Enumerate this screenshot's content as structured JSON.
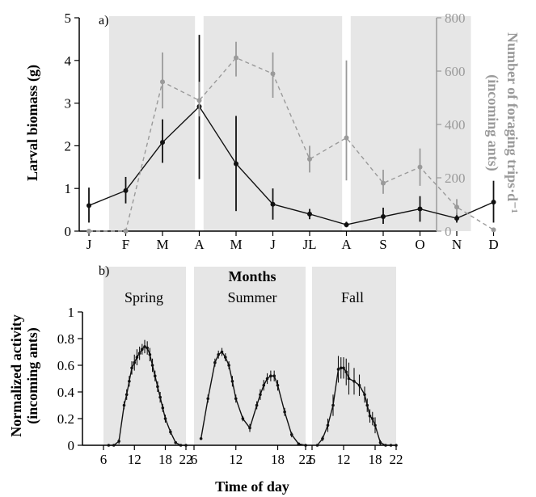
{
  "colors": {
    "black_series": "#111111",
    "gray_series": "#9a9a9a",
    "season_band": "#e6e6e6"
  },
  "chart_data": [
    {
      "type": "line",
      "panel_label": "a)",
      "ylabel": "Larval biomass (g)",
      "y2label": "Number of foraging trips·d⁻¹",
      "y2label_line2": "(incoming ants)",
      "categories": [
        "J",
        "F",
        "M",
        "A",
        "M",
        "J",
        "JL",
        "A",
        "S",
        "O",
        "N",
        "D"
      ],
      "ylim": [
        0,
        5
      ],
      "yticks": [
        "0",
        "1",
        "2",
        "3",
        "4",
        "5"
      ],
      "y2lim": [
        0,
        800
      ],
      "y2ticks": [
        "0",
        "200",
        "400",
        "600",
        "800"
      ],
      "season_bands": [
        [
          1,
          3.5
        ],
        [
          3.5,
          7.5
        ],
        [
          7.5,
          11
        ]
      ],
      "series": [
        {
          "axis": "left",
          "color": "#111111",
          "style": "solid",
          "values": [
            0.6,
            0.95,
            2.08,
            2.92,
            1.58,
            0.63,
            0.4,
            0.15,
            0.34,
            0.52,
            0.3,
            0.68
          ],
          "error_low": [
            0.2,
            0.65,
            1.6,
            1.22,
            0.47,
            0.27,
            0.28,
            0.09,
            0.17,
            0.22,
            0.2,
            0.2
          ],
          "error_high": [
            1.02,
            1.27,
            2.62,
            4.6,
            2.7,
            1.0,
            0.52,
            0.22,
            0.55,
            0.82,
            0.42,
            1.18
          ]
        },
        {
          "axis": "right",
          "color": "#9a9a9a",
          "style": "dashed",
          "values": [
            0,
            0,
            560,
            490,
            650,
            590,
            270,
            350,
            180,
            240,
            90,
            5
          ],
          "error_low": [
            0,
            0,
            460,
            430,
            580,
            500,
            220,
            190,
            140,
            170,
            60,
            0
          ],
          "error_high": [
            0,
            0,
            670,
            560,
            710,
            670,
            320,
            640,
            230,
            310,
            120,
            10
          ]
        }
      ]
    },
    {
      "type": "line",
      "panel_label": "b)",
      "title": "Months",
      "xlabel": "Time of day",
      "ylabel": "Normalized activity",
      "ylabel_line2": "(incoming ants)",
      "ylim": [
        0,
        1
      ],
      "yticks": [
        "0",
        "0.2",
        "0.4",
        "0.6",
        "0.8",
        "1"
      ],
      "xlim": [
        6,
        22
      ],
      "xticks": [
        "6",
        "12",
        "18",
        "22"
      ],
      "panels": [
        {
          "label": "Spring",
          "x": [
            7,
            8,
            9,
            10,
            10.5,
            11,
            11.5,
            12,
            12.5,
            13,
            13.5,
            14,
            14.5,
            15,
            15.5,
            16,
            16.5,
            17,
            17.5,
            18,
            19,
            20,
            21,
            22
          ],
          "y": [
            0,
            0,
            0.03,
            0.3,
            0.38,
            0.48,
            0.58,
            0.62,
            0.66,
            0.69,
            0.72,
            0.74,
            0.73,
            0.68,
            0.6,
            0.52,
            0.44,
            0.36,
            0.28,
            0.2,
            0.1,
            0.02,
            0,
            0
          ],
          "err": [
            0,
            0,
            0.02,
            0.03,
            0.04,
            0.04,
            0.05,
            0.06,
            0.06,
            0.05,
            0.04,
            0.05,
            0.05,
            0.05,
            0.05,
            0.04,
            0.04,
            0.04,
            0.03,
            0.03,
            0.02,
            0.01,
            0,
            0
          ]
        },
        {
          "label": "Summer",
          "x": [
            7,
            8,
            9,
            9.5,
            10,
            10.5,
            11,
            11.5,
            12,
            13,
            14,
            15,
            15.5,
            16,
            16.5,
            17,
            17.5,
            18,
            19,
            20,
            21,
            22
          ],
          "y": [
            0.05,
            0.35,
            0.62,
            0.68,
            0.7,
            0.66,
            0.6,
            0.48,
            0.35,
            0.2,
            0.13,
            0.3,
            0.38,
            0.45,
            0.5,
            0.52,
            0.52,
            0.45,
            0.25,
            0.08,
            0.01,
            0
          ],
          "err": [
            0.01,
            0.03,
            0.03,
            0.03,
            0.03,
            0.03,
            0.03,
            0.04,
            0.03,
            0.02,
            0.03,
            0.03,
            0.04,
            0.04,
            0.04,
            0.04,
            0.04,
            0.04,
            0.03,
            0.02,
            0.01,
            0
          ]
        },
        {
          "label": "Fall",
          "x": [
            7,
            8,
            9,
            10,
            11,
            11.5,
            12,
            12.5,
            13,
            14,
            15,
            16,
            16.5,
            17,
            17.5,
            18,
            19,
            20,
            21,
            22
          ],
          "y": [
            0,
            0.05,
            0.15,
            0.3,
            0.57,
            0.58,
            0.58,
            0.55,
            0.5,
            0.48,
            0.45,
            0.38,
            0.3,
            0.22,
            0.2,
            0.15,
            0.02,
            0,
            0,
            0
          ],
          "err": [
            0,
            0.02,
            0.05,
            0.08,
            0.1,
            0.08,
            0.08,
            0.1,
            0.12,
            0.1,
            0.08,
            0.06,
            0.05,
            0.05,
            0.05,
            0.06,
            0.02,
            0,
            0,
            0
          ]
        }
      ]
    }
  ]
}
